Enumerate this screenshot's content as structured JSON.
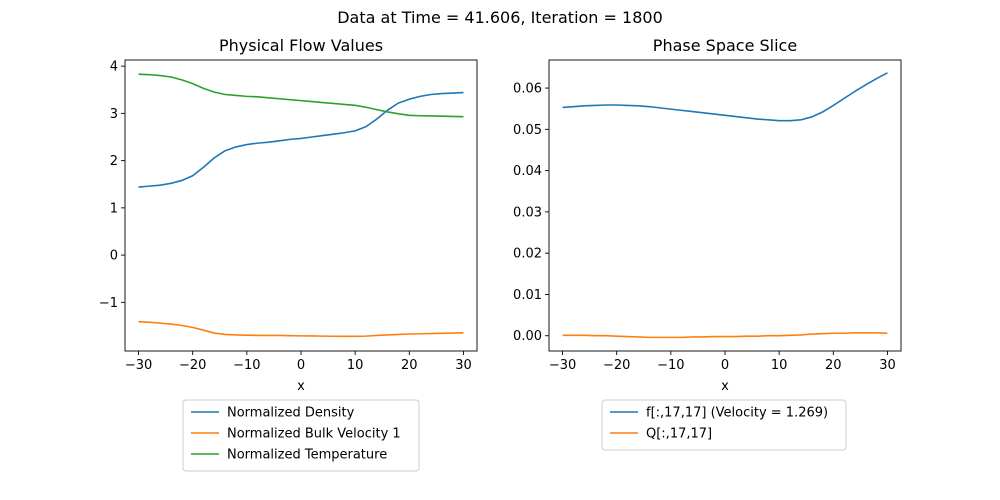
{
  "figure": {
    "suptitle": "Data at Time = 41.606, Iteration = 1800"
  },
  "chart_data": [
    {
      "type": "line",
      "title": "Physical Flow Values",
      "xlabel": "x",
      "ylabel": "",
      "xlim": [
        -32.5,
        32.5
      ],
      "ylim": [
        -2.03,
        4.13
      ],
      "xticks": [
        -30,
        -20,
        -10,
        0,
        10,
        20,
        30
      ],
      "xtick_labels": [
        "−30",
        "−20",
        "−10",
        "0",
        "10",
        "20",
        "30"
      ],
      "yticks": [
        -1,
        0,
        1,
        2,
        3,
        4
      ],
      "ytick_labels": [
        "−1",
        "0",
        "1",
        "2",
        "3",
        "4"
      ],
      "grid": false,
      "legend_position": "below",
      "x": [
        -30,
        -28,
        -26,
        -24,
        -22,
        -20,
        -18,
        -16,
        -14,
        -12,
        -10,
        -8,
        -6,
        -4,
        -2,
        0,
        2,
        4,
        6,
        8,
        10,
        12,
        14,
        16,
        18,
        20,
        22,
        24,
        26,
        28,
        30
      ],
      "series": [
        {
          "name": "Normalized Density",
          "color": "#1f77b4",
          "values": [
            1.44,
            1.46,
            1.48,
            1.52,
            1.58,
            1.68,
            1.86,
            2.06,
            2.21,
            2.29,
            2.34,
            2.37,
            2.39,
            2.42,
            2.45,
            2.47,
            2.5,
            2.53,
            2.56,
            2.59,
            2.63,
            2.72,
            2.88,
            3.07,
            3.22,
            3.3,
            3.36,
            3.4,
            3.42,
            3.43,
            3.44
          ]
        },
        {
          "name": "Normalized Bulk Velocity 1",
          "color": "#ff7f0e",
          "values": [
            -1.41,
            -1.42,
            -1.44,
            -1.46,
            -1.49,
            -1.53,
            -1.59,
            -1.65,
            -1.68,
            -1.69,
            -1.695,
            -1.7,
            -1.7,
            -1.7,
            -1.705,
            -1.71,
            -1.712,
            -1.715,
            -1.718,
            -1.72,
            -1.72,
            -1.715,
            -1.7,
            -1.69,
            -1.68,
            -1.67,
            -1.665,
            -1.66,
            -1.655,
            -1.65,
            -1.645
          ]
        },
        {
          "name": "Normalized Temperature",
          "color": "#2ca02c",
          "values": [
            3.83,
            3.82,
            3.8,
            3.77,
            3.71,
            3.63,
            3.53,
            3.45,
            3.4,
            3.38,
            3.36,
            3.35,
            3.33,
            3.31,
            3.29,
            3.27,
            3.25,
            3.23,
            3.21,
            3.19,
            3.17,
            3.13,
            3.08,
            3.03,
            2.99,
            2.96,
            2.95,
            2.945,
            2.94,
            2.935,
            2.93
          ]
        }
      ]
    },
    {
      "type": "line",
      "title": "Phase Space Slice",
      "xlabel": "x",
      "ylabel": "",
      "xlim": [
        -32.5,
        32.5
      ],
      "ylim": [
        -0.0037,
        0.0668
      ],
      "xticks": [
        -30,
        -20,
        -10,
        0,
        10,
        20,
        30
      ],
      "xtick_labels": [
        "−30",
        "−20",
        "−10",
        "0",
        "10",
        "20",
        "30"
      ],
      "yticks": [
        0.0,
        0.01,
        0.02,
        0.03,
        0.04,
        0.05,
        0.06
      ],
      "ytick_labels": [
        "0.00",
        "0.01",
        "0.02",
        "0.03",
        "0.04",
        "0.05",
        "0.06"
      ],
      "grid": false,
      "legend_position": "below",
      "x": [
        -30,
        -28,
        -26,
        -24,
        -22,
        -20,
        -18,
        -16,
        -14,
        -12,
        -10,
        -8,
        -6,
        -4,
        -2,
        0,
        2,
        4,
        6,
        8,
        10,
        12,
        14,
        16,
        18,
        20,
        22,
        24,
        26,
        28,
        30
      ],
      "series": [
        {
          "name": "f[:,17,17] (Velocity = 1.269)",
          "color": "#1f77b4",
          "values": [
            0.0553,
            0.0555,
            0.0557,
            0.0558,
            0.0559,
            0.0559,
            0.0558,
            0.0557,
            0.0555,
            0.0552,
            0.0549,
            0.0546,
            0.0543,
            0.054,
            0.0537,
            0.0534,
            0.0531,
            0.0528,
            0.0525,
            0.0523,
            0.0521,
            0.0521,
            0.0523,
            0.053,
            0.0542,
            0.0558,
            0.0575,
            0.0592,
            0.0608,
            0.0623,
            0.0637
          ]
        },
        {
          "name": "Q[:,17,17]",
          "color": "#ff7f0e",
          "values": [
            0.0001,
            0.0001,
            0.0001,
            0.0,
            0.0,
            -0.0001,
            -0.0002,
            -0.0003,
            -0.0004,
            -0.0004,
            -0.0004,
            -0.0004,
            -0.0003,
            -0.0003,
            -0.0002,
            -0.0002,
            -0.0002,
            -0.0001,
            -0.0001,
            0.0,
            0.0,
            0.0001,
            0.0002,
            0.0004,
            0.0005,
            0.0006,
            0.0006,
            0.0007,
            0.0007,
            0.0007,
            0.0006
          ]
        }
      ]
    }
  ]
}
